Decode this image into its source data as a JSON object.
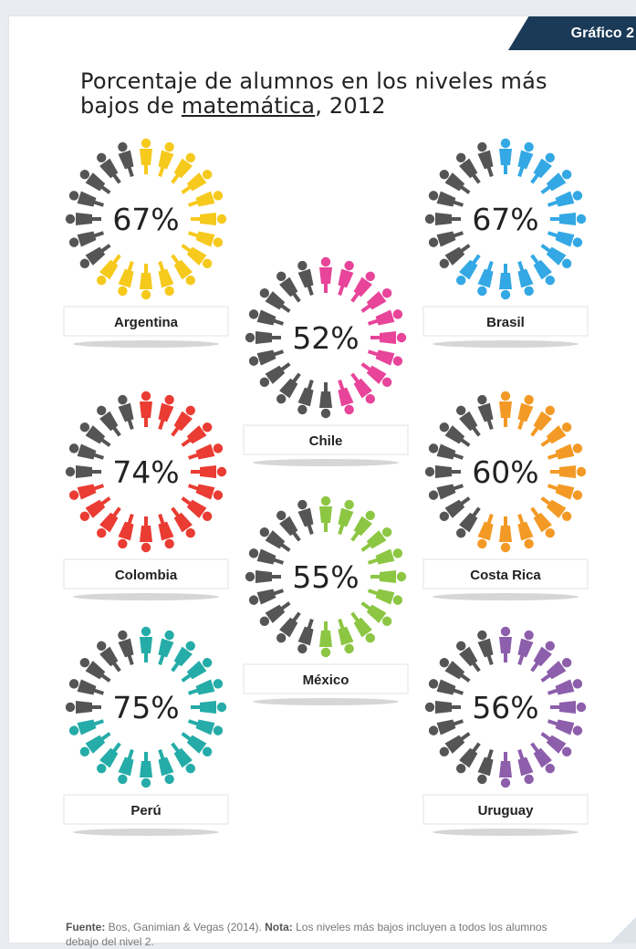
{
  "tab_label": "Gráfico 2",
  "title": {
    "line1": "Porcentaje de alumnos en los niveles más",
    "line2_prefix": "bajos de ",
    "line2_underlined": "matemática",
    "line2_suffix": ", 2012"
  },
  "chart_data": {
    "type": "pictogram",
    "title": "Porcentaje de alumnos en los niveles más bajos de matemática, 2012",
    "unit": "%",
    "items": [
      {
        "country": "Argentina",
        "value": 67,
        "label": "67%",
        "color": "#f6c91d"
      },
      {
        "country": "Brasil",
        "value": 67,
        "label": "67%",
        "color": "#33a8e4"
      },
      {
        "country": "Chile",
        "value": 52,
        "label": "52%",
        "color": "#e7449a"
      },
      {
        "country": "Colombia",
        "value": 74,
        "label": "74%",
        "color": "#ea3c33"
      },
      {
        "country": "Costa Rica",
        "value": 60,
        "label": "60%",
        "color": "#f39a26"
      },
      {
        "country": "México",
        "value": 55,
        "label": "55%",
        "color": "#8cc643"
      },
      {
        "country": "Perú",
        "value": 75,
        "label": "75%",
        "color": "#25aca8"
      },
      {
        "country": "Uruguay",
        "value": 56,
        "label": "56%",
        "color": "#8d5eab"
      }
    ],
    "neutral_color": "#555555"
  },
  "footer": {
    "source_label": "Fuente:",
    "source_text": " Bos, Ganimian & Vegas (2014). ",
    "note_label": "Nota:",
    "note_text": " Los niveles más bajos incluyen a todos los alumnos debajo del nivel 2."
  }
}
